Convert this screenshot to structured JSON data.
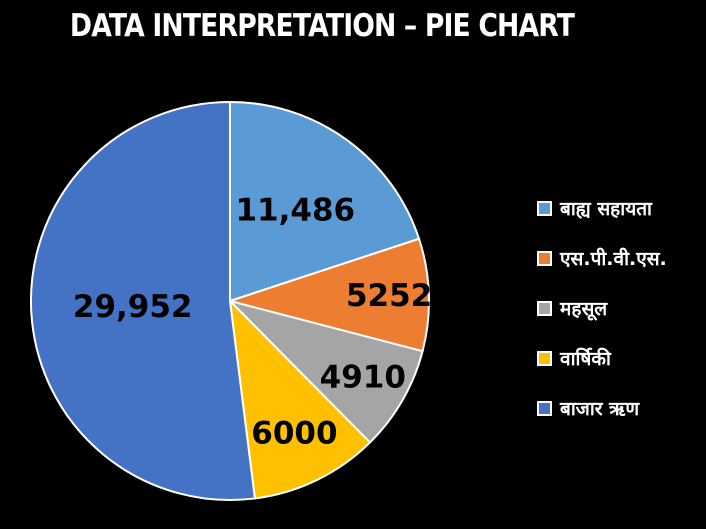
{
  "chart_data": {
    "type": "pie",
    "title": "DATA INTERPRETATION – PIE CHART",
    "categories": [
      "बाह्य सहायता",
      "एस.पी.वी.एस.",
      "महसूल",
      "वार्षिकी",
      "बाजार ऋण"
    ],
    "values": [
      11486,
      5252,
      4910,
      6000,
      29952
    ],
    "value_labels": [
      "11,486",
      "5252",
      "4910",
      "6000",
      "29,952"
    ],
    "colors": [
      "#5B9BD5",
      "#ED7D31",
      "#A5A5A5",
      "#FFC000",
      "#4472C4"
    ],
    "legend": "right",
    "start_angle_deg": 0,
    "direction": "clockwise"
  }
}
